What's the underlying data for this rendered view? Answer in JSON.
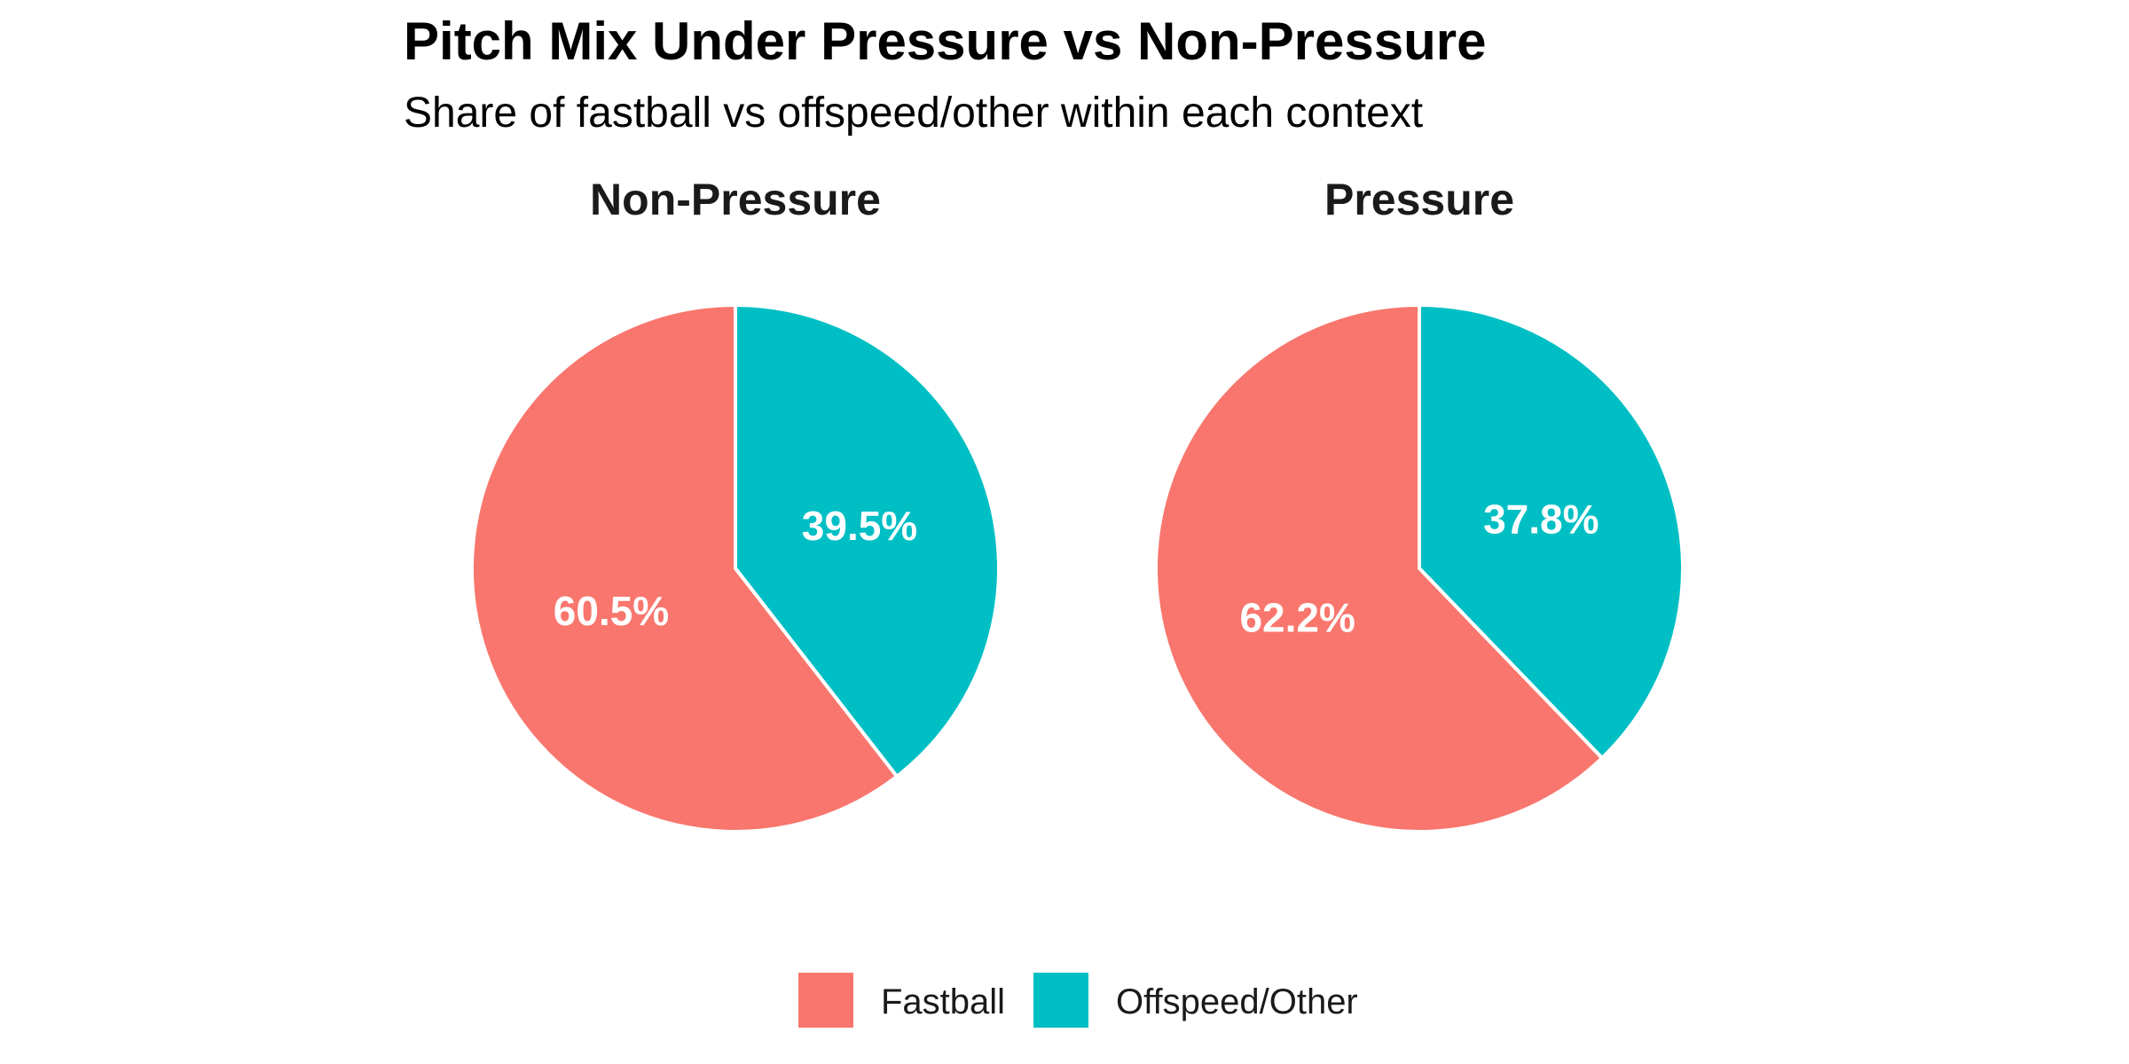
{
  "chart_data": {
    "type": "pie",
    "title": "Pitch Mix Under Pressure vs Non-Pressure",
    "subtitle": "Share of fastball vs offspeed/other within each context",
    "categories": [
      "Fastball",
      "Offspeed/Other"
    ],
    "colors": {
      "Fastball": "#F8766D",
      "Offspeed/Other": "#00BFC4"
    },
    "facets": [
      {
        "name": "Non-Pressure",
        "slices": [
          {
            "category": "Fastball",
            "value": 60.5,
            "label": "60.5%"
          },
          {
            "category": "Offspeed/Other",
            "value": 39.5,
            "label": "39.5%"
          }
        ]
      },
      {
        "name": "Pressure",
        "slices": [
          {
            "category": "Fastball",
            "value": 62.2,
            "label": "62.2%"
          },
          {
            "category": "Offspeed/Other",
            "value": 37.8,
            "label": "37.8%"
          }
        ]
      }
    ],
    "legend": {
      "position": "bottom",
      "entries": [
        "Fastball",
        "Offspeed/Other"
      ]
    }
  }
}
